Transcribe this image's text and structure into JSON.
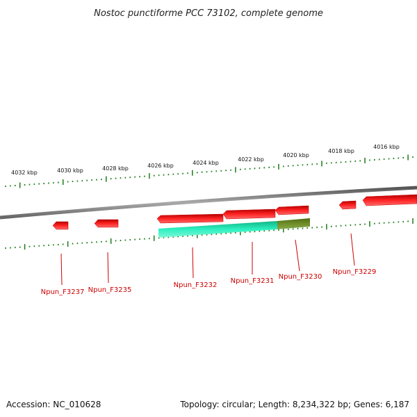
{
  "title": "Nostoc punctiforme PCC 73102, complete genome",
  "footer": {
    "accession": "Accession: NC_010628",
    "summary": "Topology: circular; Length: 8,234,322 bp; Genes: 6,187"
  },
  "colors": {
    "scale": "#1a7a1a",
    "backbone": "#7a7a7a",
    "gene": "#ee1111",
    "label": "#cc0000",
    "match": "#22ddaa",
    "match_partial": "#6b8a2a"
  },
  "ruler": {
    "labels": [
      "4032 kbp",
      "4030 kbp",
      "4028 kbp",
      "4026 kbp",
      "4024 kbp",
      "4022 kbp",
      "4020 kbp",
      "4018 kbp",
      "4016 kbp"
    ]
  },
  "genes": [
    {
      "label": "Npun_F3237"
    },
    {
      "label": "Npun_F3235"
    },
    {
      "label": "Npun_F3232"
    },
    {
      "label": "Npun_F3231"
    },
    {
      "label": "Npun_F3230"
    },
    {
      "label": "Npun_F3229"
    }
  ]
}
